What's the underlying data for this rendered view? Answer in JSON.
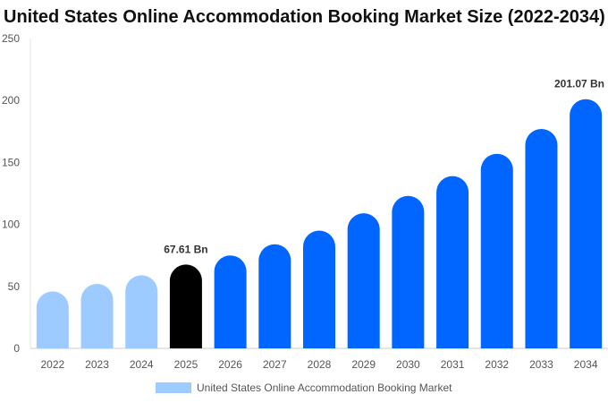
{
  "title": "United States Online Accommodation Booking Market Size (2022-2034)",
  "legend": {
    "label": "United States Online Accommodation Booking Market",
    "color": "#9ecbff"
  },
  "colors": {
    "historical": "#9ecbff",
    "current": "#000000",
    "forecast": "#0066ff"
  },
  "chart_data": {
    "type": "bar",
    "title": "United States Online Accommodation Booking Market Size (2022-2034)",
    "categories": [
      "2022",
      "2023",
      "2024",
      "2025",
      "2026",
      "2027",
      "2028",
      "2029",
      "2030",
      "2031",
      "2032",
      "2033",
      "2034"
    ],
    "series": [
      {
        "name": "United States Online Accommodation Booking Market",
        "values": [
          46,
          52,
          59,
          67.61,
          75,
          84,
          95,
          109,
          123,
          139,
          157,
          177,
          201.07
        ]
      }
    ],
    "bar_styles": [
      "historical",
      "historical",
      "historical",
      "current",
      "forecast",
      "forecast",
      "forecast",
      "forecast",
      "forecast",
      "forecast",
      "forecast",
      "forecast",
      "forecast"
    ],
    "data_labels": [
      {
        "category": "2025",
        "text": "67.61 Bn"
      },
      {
        "category": "2034",
        "text": "201.07 Bn"
      }
    ],
    "yticks": [
      0,
      50,
      100,
      150,
      200,
      250
    ],
    "ylim": [
      0,
      250
    ],
    "xlabel": "",
    "ylabel": "",
    "grid": false,
    "legend_position": "bottom"
  }
}
